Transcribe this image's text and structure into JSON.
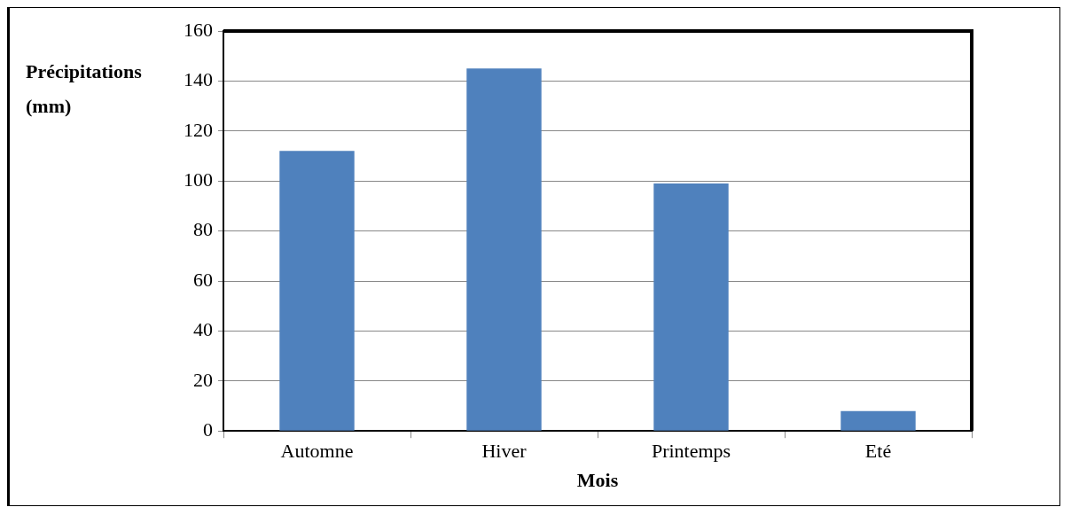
{
  "chart_data": {
    "type": "bar",
    "xlabel": "Mois",
    "ylabel": "Précipitations (mm)",
    "categories": [
      "Automne",
      "Hiver",
      "Printemps",
      "Eté"
    ],
    "values": [
      112,
      145,
      99,
      8
    ],
    "color": "#4f81bd",
    "ylim": [
      0,
      160
    ],
    "yticks": [
      0,
      20,
      40,
      60,
      80,
      100,
      120,
      140,
      160
    ],
    "grid": "y",
    "legend": false
  }
}
